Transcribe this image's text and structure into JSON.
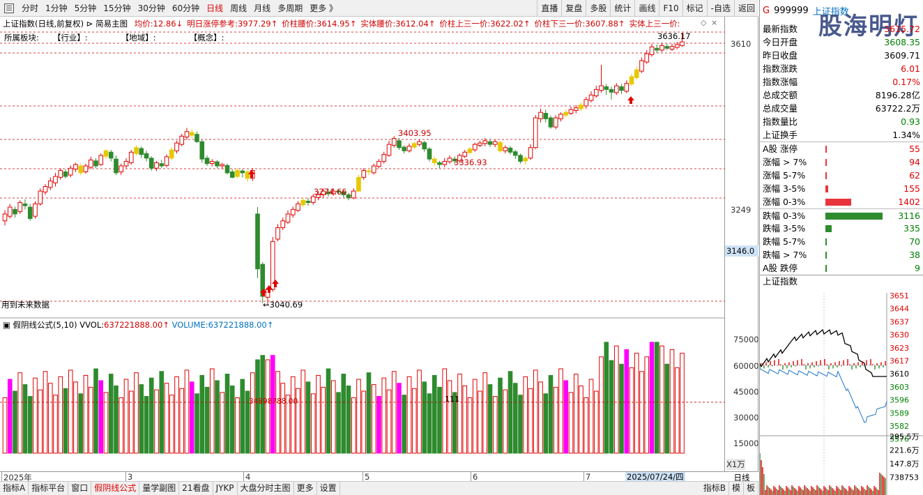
{
  "toolbar": {
    "periods": [
      "分时",
      "1分钟",
      "5分钟",
      "15分钟",
      "30分钟",
      "60分钟",
      "日线",
      "周线",
      "月线",
      "多周期",
      "更多 》"
    ],
    "active_period": "日线",
    "right_buttons": [
      "直播",
      "复盘",
      "多股",
      "统计",
      "画线",
      "F10",
      "标记",
      "-自选",
      "返回"
    ]
  },
  "chart": {
    "title": "上证指数(日线,前复权)",
    "template": "简易主图",
    "indicators": [
      {
        "label": "均价:",
        "value": "12.86↓"
      },
      {
        "label": "明日涨停参考:",
        "value": "3977.29↑"
      },
      {
        "label": "价柱腰价:",
        "value": "3614.95↑"
      },
      {
        "label": "实体腰价:",
        "value": "3612.04↑"
      },
      {
        "label": "价柱上三一价:",
        "value": "3622.02↑"
      },
      {
        "label": "价柱下三一价:",
        "value": "3607.88↑"
      },
      {
        "label": "实体上三一价:",
        "value": ""
      }
    ],
    "sector_row": [
      "所属板块:",
      "【行业】:",
      "【地域】:",
      "【概念】:"
    ],
    "annotations": {
      "high": "3636.17",
      "low": "←3040.69",
      "level_3403": "3403.95",
      "level_3336": "3336.93",
      "level_3274": "3274.66",
      "future_data": "用到未来数据"
    },
    "price_axis": {
      "top": "3610",
      "mid": "3249",
      "current": "3146.0"
    },
    "volume": {
      "title": "假阴线公式(5,10)",
      "vvol_label": "VVOL:",
      "vvol": "637221888.00↑",
      "volume_label": "VOLUME:",
      "volume": "637221888.00↑",
      "axis": [
        "75000",
        "60000",
        "45000",
        "30000",
        "15000"
      ],
      "axis_unit": "X1万",
      "mid_label": "34898788.00",
      "mid_label2": "111"
    },
    "time_axis": {
      "labels": [
        "2025年",
        "3",
        "4",
        "5",
        "6",
        "7"
      ],
      "highlight_date": "2025/07/24/四",
      "period": "日线"
    }
  },
  "bottom_tabs": {
    "left": [
      "指标A",
      "指标平台",
      "窗口",
      "假阴线公式",
      "量学副图",
      "21看盘",
      "JYKP",
      "大盘分时主图",
      "更多",
      "设置"
    ],
    "active": "假阴线公式",
    "right": [
      "指标B",
      "模",
      "板"
    ]
  },
  "quote": {
    "g": "G",
    "code": "999999",
    "name": "上证指数",
    "watermark": "股海明灯",
    "rows": [
      {
        "k": "最新指数",
        "v": "3615.72",
        "c": "red"
      },
      {
        "k": "今日开盘",
        "v": "3608.35",
        "c": "green"
      },
      {
        "k": "昨日收盘",
        "v": "3609.71",
        "c": ""
      },
      {
        "k": "指数涨跌",
        "v": "6.01",
        "c": "red"
      },
      {
        "k": "指数涨幅",
        "v": "0.17%",
        "c": "red"
      },
      {
        "k": "总成交额",
        "v": "8196.28亿",
        "c": ""
      },
      {
        "k": "总成交量",
        "v": "63722.2万",
        "c": ""
      },
      {
        "k": "指数量比",
        "v": "0.93",
        "c": "green"
      },
      {
        "k": "上证换手",
        "v": "1.34%",
        "c": ""
      }
    ],
    "dist": [
      {
        "k": "A股 涨停",
        "v": "55",
        "c": "red",
        "frac": 0.02
      },
      {
        "k": "涨幅 > 7%",
        "v": "94",
        "c": "red",
        "frac": 0.03
      },
      {
        "k": "涨幅 5-7%",
        "v": "62",
        "c": "red",
        "frac": 0.02
      },
      {
        "k": "涨幅 3-5%",
        "v": "155",
        "c": "red",
        "frac": 0.05
      },
      {
        "k": "涨幅 0-3%",
        "v": "1402",
        "c": "red",
        "frac": 0.45
      },
      {
        "k": "跌幅 0-3%",
        "v": "3116",
        "c": "green",
        "frac": 1.0
      },
      {
        "k": "跌幅 3-5%",
        "v": "335",
        "c": "green",
        "frac": 0.11
      },
      {
        "k": "跌幅 5-7%",
        "v": "70",
        "c": "green",
        "frac": 0.02
      },
      {
        "k": "跌幅 > 7%",
        "v": "38",
        "c": "green",
        "frac": 0.01
      },
      {
        "k": "A股 跌停",
        "v": "9",
        "c": "green",
        "frac": 0.005
      }
    ],
    "mini_title": "上证指数",
    "mini_axis": [
      "3651",
      "3644",
      "3637",
      "3630",
      "3623",
      "3617",
      "3610",
      "3603",
      "3596",
      "3589",
      "3582",
      "3576"
    ],
    "mini_vol_axis": [
      "295.5万",
      "221.6万",
      "147.8万",
      "738753"
    ]
  },
  "colors": {
    "up": "#e00000",
    "down": "#2e8b2e",
    "special": "#ff00ff",
    "yellow": "#e6c800",
    "grid": "#cc0000"
  }
}
